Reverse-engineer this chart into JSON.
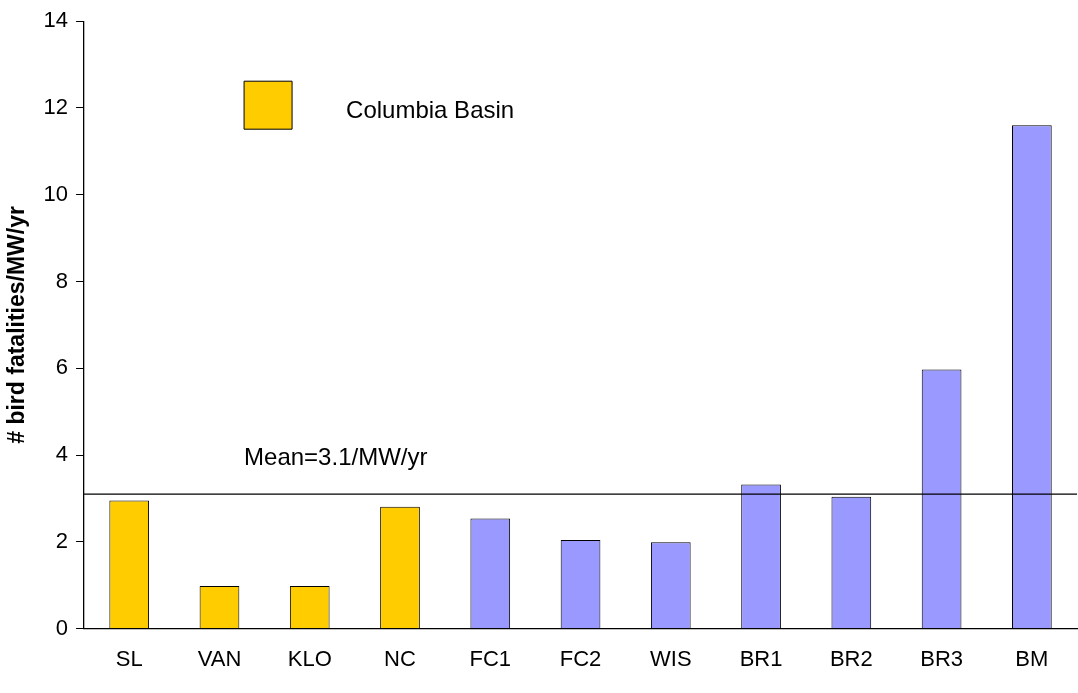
{
  "chart_data": {
    "type": "bar",
    "ylabel": "# bird fatalities/MW/yr",
    "categories": [
      "SL",
      "VAN",
      "KLO",
      "NC",
      "FC1",
      "FC2",
      "WIS",
      "BR1",
      "BR2",
      "BR3",
      "BM"
    ],
    "series": [
      {
        "name": "Columbia Basin",
        "color": "#ffcc00",
        "values": [
          2.95,
          0.98,
          0.98,
          2.81,
          null,
          null,
          null,
          null,
          null,
          null,
          null
        ]
      },
      {
        "color": "#9999ff",
        "values": [
          null,
          null,
          null,
          null,
          2.54,
          2.04,
          1.99,
          3.32,
          3.04,
          5.97,
          11.6
        ]
      }
    ],
    "ylim": [
      0,
      14
    ],
    "yticks": [
      0,
      2,
      4,
      6,
      8,
      10,
      12,
      14
    ],
    "grid": false,
    "legend": "top left",
    "ref_lines": [
      {
        "axis": "y",
        "value": 3.1,
        "label": "Mean=3.1/MW/yr",
        "color": "#000000"
      }
    ]
  }
}
